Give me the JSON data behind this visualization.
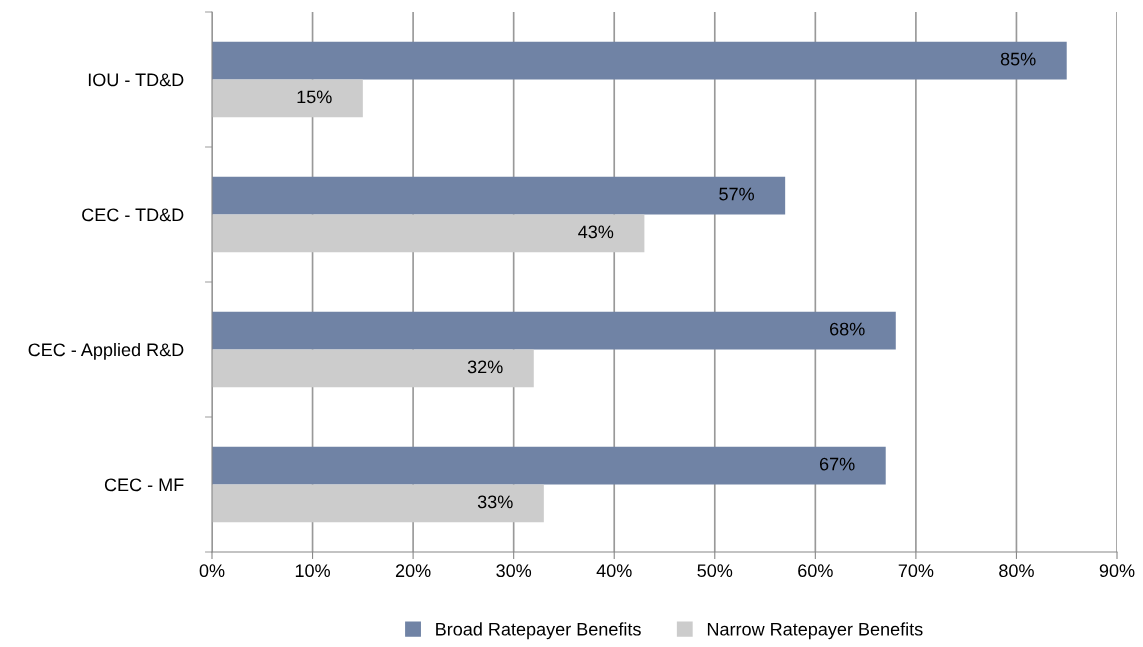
{
  "chart_data": {
    "type": "bar",
    "orientation": "horizontal",
    "categories": [
      "IOU - TD&D",
      "CEC - TD&D",
      "CEC - Applied R&D",
      "CEC - MF"
    ],
    "series": [
      {
        "name": "Broad Ratepayer Benefits",
        "color": "#7083a5",
        "values": [
          85,
          57,
          68,
          67
        ],
        "value_labels": [
          "85%",
          "57%",
          "68%",
          "67%"
        ]
      },
      {
        "name": "Narrow Ratepayer Benefits",
        "color": "#cccccc",
        "values": [
          15,
          43,
          32,
          33
        ],
        "value_labels": [
          "15%",
          "43%",
          "32%",
          "33%"
        ]
      }
    ],
    "xlim": [
      0,
      90
    ],
    "xticks": [
      {
        "value": 0,
        "label": "0%"
      },
      {
        "value": 10,
        "label": "10%"
      },
      {
        "value": 20,
        "label": "20%"
      },
      {
        "value": 30,
        "label": "30%"
      },
      {
        "value": 40,
        "label": "40%"
      },
      {
        "value": 50,
        "label": "50%"
      },
      {
        "value": 60,
        "label": "60%"
      },
      {
        "value": 70,
        "label": "70%"
      },
      {
        "value": 80,
        "label": "80%"
      },
      {
        "value": 90,
        "label": "90%"
      }
    ],
    "grid": "x",
    "legend": "bottom"
  }
}
